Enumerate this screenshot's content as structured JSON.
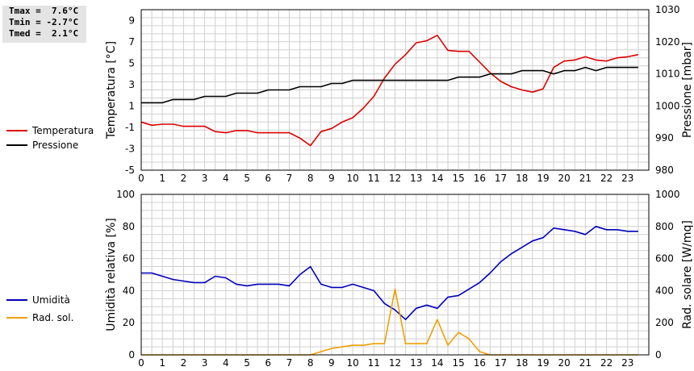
{
  "stats": {
    "tmax": "Tmax =  7.6°C",
    "tmin": "Tmin = -2.7°C",
    "tmed": "Tmed =  2.1°C"
  },
  "colors": {
    "temperature": "#dd0000",
    "pressure": "#000000",
    "humidity": "#0000bb",
    "radiation": "#f0a000",
    "grid": "#d0d0d0"
  },
  "chart_data": [
    {
      "type": "line",
      "xlim": [
        0,
        24
      ],
      "xticks": [
        0,
        1,
        2,
        3,
        4,
        5,
        6,
        7,
        8,
        9,
        10,
        11,
        12,
        13,
        14,
        15,
        16,
        17,
        18,
        19,
        20,
        21,
        22,
        23
      ],
      "grid": true,
      "legend": "left",
      "left_axis": {
        "label": "Temperatura [°C]",
        "lim": [
          -5,
          10
        ],
        "ticks": [
          -5,
          -3,
          -1,
          1,
          3,
          5,
          7,
          9
        ]
      },
      "right_axis": {
        "label": "Pressione [mbar]",
        "lim": [
          980,
          1030
        ],
        "ticks": [
          980,
          990,
          1000,
          1010,
          1020,
          1030
        ]
      },
      "series": [
        {
          "name": "Temperatura",
          "axis": "left",
          "x": [
            0,
            0.5,
            1,
            1.5,
            2,
            2.5,
            3,
            3.5,
            4,
            4.5,
            5,
            5.5,
            6,
            6.5,
            7,
            7.5,
            8,
            8.5,
            9,
            9.5,
            10,
            10.5,
            11,
            11.5,
            12,
            12.5,
            13,
            13.5,
            14,
            14.5,
            15,
            15.5,
            16,
            16.5,
            17,
            17.5,
            18,
            18.5,
            19,
            19.5,
            20,
            20.5,
            21,
            21.5,
            22,
            22.5,
            23,
            23.5
          ],
          "y": [
            -0.5,
            -0.8,
            -0.7,
            -0.7,
            -0.9,
            -0.9,
            -0.9,
            -1.4,
            -1.5,
            -1.3,
            -1.3,
            -1.5,
            -1.5,
            -1.5,
            -1.5,
            -2.0,
            -2.7,
            -1.4,
            -1.1,
            -0.5,
            -0.1,
            0.8,
            1.9,
            3.6,
            4.9,
            5.8,
            6.9,
            7.1,
            7.6,
            6.2,
            6.1,
            6.1,
            5.1,
            4.1,
            3.3,
            2.8,
            2.5,
            2.3,
            2.6,
            4.6,
            5.2,
            5.3,
            5.6,
            5.3,
            5.2,
            5.5,
            5.6,
            5.8
          ]
        },
        {
          "name": "Pressione",
          "axis": "right",
          "x": [
            0,
            1,
            1.5,
            2.5,
            3,
            4,
            4.5,
            5.5,
            6,
            7,
            7.5,
            8.5,
            9,
            9.5,
            10,
            11,
            12,
            13,
            14,
            14.5,
            15,
            16,
            16.5,
            17,
            17.5,
            18,
            19,
            19.5,
            20,
            20.5,
            21,
            21.5,
            22,
            22.5,
            23,
            23.5
          ],
          "y": [
            1001,
            1001,
            1002,
            1002,
            1003,
            1003,
            1004,
            1004,
            1005,
            1005,
            1006,
            1006,
            1007,
            1007,
            1008,
            1008,
            1008,
            1008,
            1008,
            1008,
            1009,
            1009,
            1010,
            1010,
            1010,
            1011,
            1011,
            1010,
            1011,
            1011,
            1012,
            1011,
            1012,
            1012,
            1012,
            1012
          ]
        }
      ]
    },
    {
      "type": "line",
      "xlim": [
        0,
        24
      ],
      "xticks": [
        0,
        1,
        2,
        3,
        4,
        5,
        6,
        7,
        8,
        9,
        10,
        11,
        12,
        13,
        14,
        15,
        16,
        17,
        18,
        19,
        20,
        21,
        22,
        23
      ],
      "grid": true,
      "legend": "left",
      "left_axis": {
        "label": "Umidità relativa [%]",
        "lim": [
          0,
          100
        ],
        "ticks": [
          0,
          20,
          40,
          60,
          80,
          100
        ]
      },
      "right_axis": {
        "label": "Rad. solare [W/mq]",
        "lim": [
          0,
          1000
        ],
        "ticks": [
          0,
          200,
          400,
          600,
          800,
          1000
        ]
      },
      "series": [
        {
          "name": "Umidità",
          "axis": "left",
          "x": [
            0,
            0.5,
            1,
            1.5,
            2,
            2.5,
            3,
            3.5,
            4,
            4.5,
            5,
            5.5,
            6,
            6.5,
            7,
            7.5,
            8,
            8.5,
            9,
            9.5,
            10,
            10.5,
            11,
            11.5,
            12,
            12.5,
            13,
            13.5,
            14,
            14.5,
            15,
            15.5,
            16,
            16.5,
            17,
            17.5,
            18,
            18.5,
            19,
            19.5,
            20,
            20.5,
            21,
            21.5,
            22,
            22.5,
            23,
            23.5
          ],
          "y": [
            51,
            51,
            49,
            47,
            46,
            45,
            45,
            49,
            48,
            44,
            43,
            44,
            44,
            44,
            43,
            50,
            55,
            44,
            42,
            42,
            44,
            42,
            40,
            32,
            28,
            22,
            29,
            31,
            29,
            36,
            37,
            41,
            45,
            51,
            58,
            63,
            67,
            71,
            73,
            79,
            78,
            77,
            75,
            80,
            78,
            78,
            77,
            77
          ]
        },
        {
          "name": "Rad. sol.",
          "axis": "right",
          "x": [
            0,
            1,
            2,
            3,
            4,
            5,
            6,
            7,
            8,
            8.5,
            9,
            9.5,
            10,
            10.5,
            11,
            11.5,
            12,
            12.5,
            13,
            13.5,
            14,
            14.5,
            15,
            15.5,
            16,
            16.5,
            17,
            18,
            19,
            20,
            21,
            22,
            23,
            23.5
          ],
          "y": [
            0,
            0,
            0,
            0,
            0,
            0,
            0,
            0,
            0,
            20,
            40,
            50,
            60,
            60,
            70,
            70,
            410,
            70,
            70,
            70,
            220,
            60,
            140,
            100,
            20,
            0,
            0,
            0,
            0,
            0,
            0,
            0,
            0,
            0
          ]
        }
      ]
    }
  ]
}
